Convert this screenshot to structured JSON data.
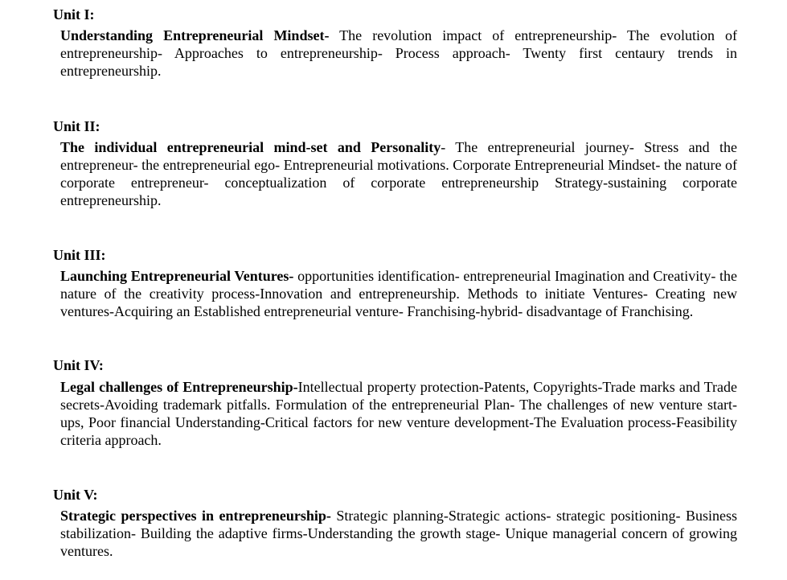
{
  "units": [
    {
      "heading": "Unit I:",
      "title": "Understanding Entrepreneurial Mindset-",
      "text": " The revolution impact of entrepreneurship- The evolution of entrepreneurship- Approaches to entrepreneurship- Process approach- Twenty first centaury trends in entrepreneurship."
    },
    {
      "heading": "Unit II:",
      "title": "The individual entrepreneurial mind-set and Personality",
      "text": "- The entrepreneurial journey- Stress and the entrepreneur- the entrepreneurial ego- Entrepreneurial motivations. Corporate Entrepreneurial Mindset- the nature of corporate entrepreneur- conceptualization of corporate entrepreneurship Strategy-sustaining corporate entrepreneurship."
    },
    {
      "heading": "Unit III:",
      "title": "Launching Entrepreneurial Ventures-",
      "text": " opportunities identification- entrepreneurial Imagination and Creativity- the nature of the creativity process-Innovation and entrepreneurship. Methods to initiate Ventures- Creating new ventures-Acquiring an Established entrepreneurial venture- Franchising-hybrid- disadvantage of Franchising."
    },
    {
      "heading": "Unit IV:",
      "title": "Legal challenges of Entrepreneurship-",
      "text": "Intellectual property protection-Patents, Copyrights-Trade marks and Trade secrets-Avoiding trademark pitfalls. Formulation of the entrepreneurial Plan- The challenges of new venture start-ups, Poor financial Understanding-Critical factors for new venture development-The Evaluation process-Feasibility criteria approach."
    },
    {
      "heading": "Unit V:",
      "title": "Strategic perspectives in entrepreneurship-",
      "text": " Strategic planning-Strategic actions- strategic positioning- Business stabilization- Building the adaptive firms-Understanding the growth stage- Unique managerial concern of growing ventures."
    }
  ]
}
